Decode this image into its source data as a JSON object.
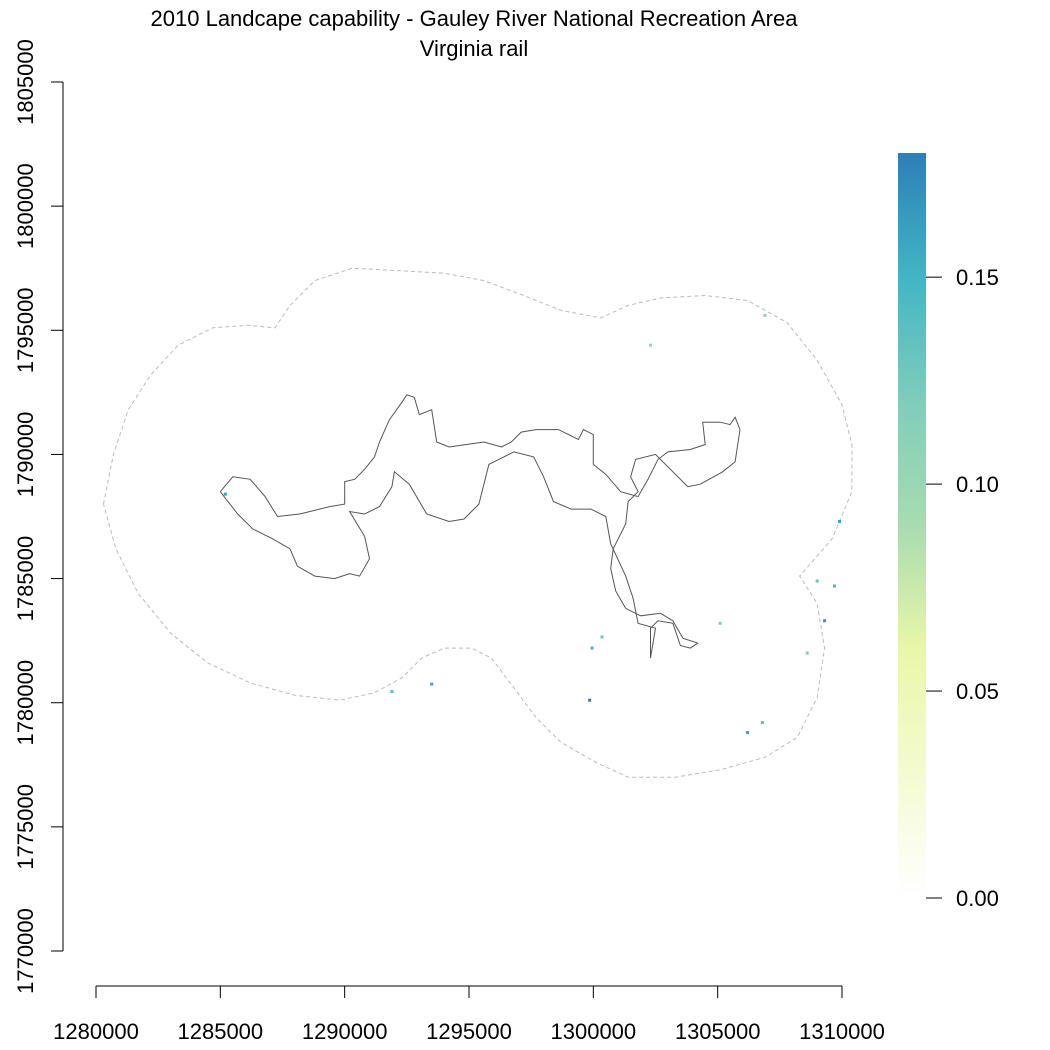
{
  "title": {
    "line1": "2010 Landcape capability - Gauley River National Recreation Area",
    "line2": "Virginia rail"
  },
  "chart_data": {
    "type": "heatmap",
    "title": "2010 Landcape capability - Gauley River National Recreation Area",
    "subtitle": "Virginia rail",
    "xlabel": "",
    "ylabel": "",
    "xlim": [
      1280000,
      1310000
    ],
    "ylim": [
      1770000,
      1805000
    ],
    "x_ticks": [
      1280000,
      1285000,
      1290000,
      1295000,
      1300000,
      1305000,
      1310000
    ],
    "y_ticks": [
      1770000,
      1775000,
      1780000,
      1785000,
      1790000,
      1795000,
      1800000,
      1805000
    ],
    "legend": {
      "placement": "right",
      "range": [
        0.0,
        0.18
      ],
      "ticks": [
        0.0,
        0.05,
        0.1,
        0.15
      ],
      "tick_labels": [
        "0.00",
        "0.05",
        "0.10",
        "0.15"
      ],
      "colors": [
        "#ffffff",
        "#f4fbd0",
        "#e9f7a8",
        "#a8dcb0",
        "#7fcdbb",
        "#41b6c4",
        "#2c7fb8"
      ]
    },
    "boundary_color": "#555555",
    "buffer_color": "#bbbbbb",
    "raster_cells": [
      {
        "x": 1285200,
        "y": 1788400,
        "value": 0.16
      },
      {
        "x": 1291900,
        "y": 1780450,
        "value": 0.14
      },
      {
        "x": 1293500,
        "y": 1780750,
        "value": 0.16
      },
      {
        "x": 1299850,
        "y": 1780100,
        "value": 0.18
      },
      {
        "x": 1299950,
        "y": 1782200,
        "value": 0.15
      },
      {
        "x": 1300350,
        "y": 1782650,
        "value": 0.13
      },
      {
        "x": 1305100,
        "y": 1783200,
        "value": 0.12
      },
      {
        "x": 1306200,
        "y": 1778800,
        "value": 0.16
      },
      {
        "x": 1306800,
        "y": 1779200,
        "value": 0.14
      },
      {
        "x": 1308600,
        "y": 1782000,
        "value": 0.12
      },
      {
        "x": 1309300,
        "y": 1783300,
        "value": 0.17
      },
      {
        "x": 1309700,
        "y": 1784700,
        "value": 0.15
      },
      {
        "x": 1309000,
        "y": 1784900,
        "value": 0.13
      },
      {
        "x": 1309900,
        "y": 1787300,
        "value": 0.16
      },
      {
        "x": 1306900,
        "y": 1795600,
        "value": 0.11
      },
      {
        "x": 1302300,
        "y": 1794400,
        "value": 0.1
      }
    ],
    "buffer_outline": [
      [
        1280300,
        1788000
      ],
      [
        1280700,
        1790000
      ],
      [
        1281300,
        1791800
      ],
      [
        1282200,
        1793200
      ],
      [
        1283300,
        1794400
      ],
      [
        1284700,
        1795100
      ],
      [
        1286100,
        1795200
      ],
      [
        1287200,
        1795100
      ],
      [
        1287800,
        1796000
      ],
      [
        1288800,
        1797000
      ],
      [
        1290300,
        1797500
      ],
      [
        1292200,
        1797400
      ],
      [
        1294000,
        1797300
      ],
      [
        1295600,
        1797000
      ],
      [
        1297200,
        1796400
      ],
      [
        1298700,
        1795800
      ],
      [
        1300300,
        1795500
      ],
      [
        1301400,
        1796000
      ],
      [
        1302700,
        1796300
      ],
      [
        1304500,
        1796400
      ],
      [
        1306200,
        1796200
      ],
      [
        1307800,
        1795300
      ],
      [
        1309000,
        1793800
      ],
      [
        1310000,
        1792000
      ],
      [
        1310400,
        1790400
      ],
      [
        1310400,
        1788500
      ],
      [
        1309600,
        1786600
      ],
      [
        1308300,
        1785100
      ],
      [
        1309000,
        1784000
      ],
      [
        1309300,
        1782200
      ],
      [
        1309000,
        1780200
      ],
      [
        1308200,
        1778600
      ],
      [
        1306900,
        1777800
      ],
      [
        1305100,
        1777300
      ],
      [
        1303300,
        1777000
      ],
      [
        1301400,
        1777000
      ],
      [
        1300100,
        1777600
      ],
      [
        1298700,
        1778400
      ],
      [
        1297700,
        1779400
      ],
      [
        1296800,
        1780600
      ],
      [
        1295900,
        1781800
      ],
      [
        1295100,
        1782200
      ],
      [
        1294000,
        1782200
      ],
      [
        1293100,
        1781800
      ],
      [
        1292300,
        1781000
      ],
      [
        1291200,
        1780400
      ],
      [
        1289800,
        1780100
      ],
      [
        1288000,
        1780300
      ],
      [
        1286200,
        1780800
      ],
      [
        1284500,
        1781600
      ],
      [
        1283000,
        1782800
      ],
      [
        1281700,
        1784400
      ],
      [
        1280800,
        1786200
      ],
      [
        1280300,
        1788000
      ]
    ],
    "park_boundary": [
      [
        1285000,
        1788500
      ],
      [
        1285500,
        1789100
      ],
      [
        1286200,
        1789000
      ],
      [
        1286800,
        1788300
      ],
      [
        1287300,
        1787500
      ],
      [
        1288200,
        1787600
      ],
      [
        1289400,
        1787900
      ],
      [
        1290000,
        1788000
      ],
      [
        1290000,
        1788900
      ],
      [
        1290400,
        1789000
      ],
      [
        1290800,
        1789400
      ],
      [
        1291200,
        1789900
      ],
      [
        1291400,
        1790500
      ],
      [
        1291800,
        1791400
      ],
      [
        1292300,
        1792100
      ],
      [
        1292500,
        1792400
      ],
      [
        1292800,
        1792300
      ],
      [
        1293000,
        1791600
      ],
      [
        1293500,
        1791800
      ],
      [
        1293700,
        1790500
      ],
      [
        1294200,
        1790300
      ],
      [
        1294900,
        1790400
      ],
      [
        1295600,
        1790500
      ],
      [
        1296300,
        1790300
      ],
      [
        1296700,
        1790500
      ],
      [
        1297100,
        1790900
      ],
      [
        1297700,
        1791000
      ],
      [
        1298600,
        1791000
      ],
      [
        1299000,
        1790800
      ],
      [
        1299400,
        1790600
      ],
      [
        1299600,
        1791000
      ],
      [
        1300000,
        1790800
      ],
      [
        1300000,
        1789600
      ],
      [
        1300500,
        1789200
      ],
      [
        1301100,
        1788500
      ],
      [
        1301800,
        1788300
      ],
      [
        1302200,
        1789000
      ],
      [
        1302600,
        1789800
      ],
      [
        1303000,
        1790100
      ],
      [
        1303900,
        1790200
      ],
      [
        1304500,
        1790400
      ],
      [
        1304400,
        1791300
      ],
      [
        1305100,
        1791300
      ],
      [
        1305500,
        1791200
      ],
      [
        1305700,
        1791500
      ],
      [
        1305900,
        1791000
      ],
      [
        1305700,
        1789700
      ],
      [
        1305200,
        1789300
      ],
      [
        1304300,
        1788800
      ],
      [
        1303800,
        1788700
      ],
      [
        1303200,
        1789300
      ],
      [
        1302500,
        1790000
      ],
      [
        1301700,
        1789800
      ],
      [
        1301500,
        1789100
      ],
      [
        1301800,
        1788500
      ],
      [
        1301400,
        1788100
      ],
      [
        1301300,
        1787200
      ],
      [
        1300800,
        1786200
      ],
      [
        1300700,
        1785400
      ],
      [
        1300900,
        1784500
      ],
      [
        1301300,
        1783800
      ],
      [
        1301900,
        1783500
      ],
      [
        1302700,
        1783600
      ],
      [
        1303200,
        1783300
      ],
      [
        1303600,
        1782600
      ],
      [
        1304200,
        1782400
      ],
      [
        1303900,
        1782200
      ],
      [
        1303500,
        1782300
      ],
      [
        1303200,
        1783200
      ],
      [
        1302600,
        1783300
      ],
      [
        1302300,
        1783000
      ],
      [
        1302300,
        1781800
      ],
      [
        1302500,
        1783000
      ],
      [
        1301800,
        1783200
      ],
      [
        1301600,
        1784200
      ],
      [
        1301300,
        1785100
      ],
      [
        1300700,
        1786400
      ],
      [
        1300500,
        1787500
      ],
      [
        1299900,
        1787800
      ],
      [
        1299100,
        1787800
      ],
      [
        1298400,
        1788100
      ],
      [
        1298000,
        1789100
      ],
      [
        1297600,
        1789900
      ],
      [
        1296800,
        1790100
      ],
      [
        1296200,
        1789800
      ],
      [
        1295800,
        1789600
      ],
      [
        1295600,
        1788800
      ],
      [
        1295400,
        1788000
      ],
      [
        1294800,
        1787400
      ],
      [
        1294200,
        1787300
      ],
      [
        1293300,
        1787600
      ],
      [
        1292600,
        1788800
      ],
      [
        1292000,
        1789300
      ],
      [
        1291900,
        1788700
      ],
      [
        1291400,
        1787900
      ],
      [
        1290800,
        1787600
      ],
      [
        1290200,
        1787700
      ],
      [
        1290800,
        1786700
      ],
      [
        1291000,
        1785800
      ],
      [
        1290600,
        1785100
      ],
      [
        1290200,
        1785200
      ],
      [
        1289600,
        1785000
      ],
      [
        1288800,
        1785100
      ],
      [
        1288100,
        1785500
      ],
      [
        1287800,
        1786200
      ],
      [
        1287100,
        1786600
      ],
      [
        1286300,
        1787000
      ],
      [
        1285700,
        1787600
      ],
      [
        1285000,
        1788500
      ]
    ]
  }
}
